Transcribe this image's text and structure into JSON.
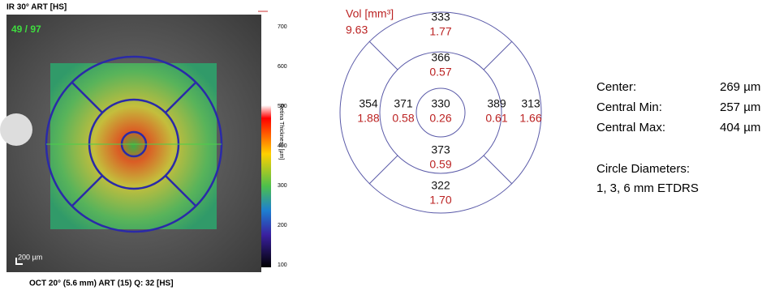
{
  "fundus": {
    "title": "IR 30° ART [HS]",
    "counter": "49 / 97",
    "scale_bar": "200 µm",
    "footer": "OCT 20° (5.6 mm) ART (15) Q: 32 [HS]"
  },
  "colorbar": {
    "label": "Retina Thickness [µm]",
    "ticks": [
      "700",
      "600",
      "500",
      "400",
      "300",
      "200",
      "100"
    ]
  },
  "etdrs": {
    "volume_label": "Vol [mm³]",
    "total_volume": "9.63",
    "sectors": {
      "outer_superior": {
        "thickness": "333",
        "volume": "1.77"
      },
      "inner_superior": {
        "thickness": "366",
        "volume": "0.57"
      },
      "outer_left": {
        "thickness": "354",
        "volume": "1.88"
      },
      "inner_left": {
        "thickness": "371",
        "volume": "0.58"
      },
      "center": {
        "thickness": "330",
        "volume": "0.26"
      },
      "inner_right": {
        "thickness": "389",
        "volume": "0.61"
      },
      "outer_right": {
        "thickness": "313",
        "volume": "1.66"
      },
      "inner_inferior": {
        "thickness": "373",
        "volume": "0.59"
      },
      "outer_inferior": {
        "thickness": "322",
        "volume": "1.70"
      }
    }
  },
  "stats": {
    "rows": [
      {
        "label": "Center:",
        "value": "269 µm"
      },
      {
        "label": "Central Min:",
        "value": "257 µm"
      },
      {
        "label": "Central Max:",
        "value": "404 µm"
      }
    ],
    "circle_diameters_label": "Circle Diameters:",
    "circle_diameters": "1, 3, 6 mm ETDRS"
  }
}
